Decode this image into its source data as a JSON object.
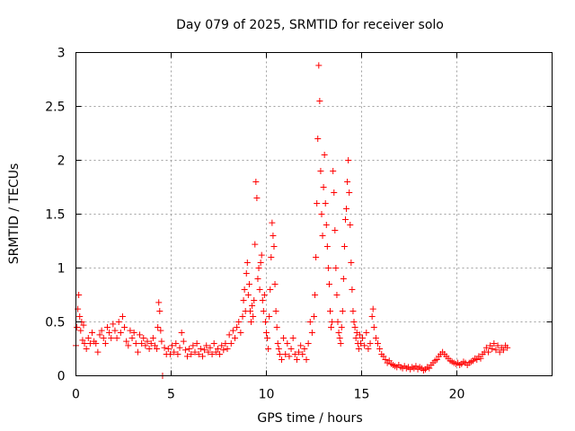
{
  "chart_data": {
    "type": "scatter",
    "title": "Day 079 of 2025, SRMTID for receiver solo",
    "xlabel": "GPS time / hours",
    "ylabel": "SRMTID / TECUs",
    "xlim": [
      0,
      25
    ],
    "ylim": [
      0,
      3
    ],
    "xticks": [
      0,
      5,
      10,
      15,
      20
    ],
    "yticks": [
      0,
      0.5,
      1,
      1.5,
      2,
      2.5,
      3
    ],
    "xtick_labels": [
      "0",
      "5",
      "10",
      "15",
      "20"
    ],
    "ytick_labels": [
      "0",
      "0.5",
      "1",
      "1.5",
      "2",
      "2.5",
      "3"
    ],
    "grid": true,
    "marker": "plus",
    "color": "#ff0000",
    "series": [
      {
        "name": "SRMTID",
        "points": [
          [
            0.0,
            0.28
          ],
          [
            0.05,
            0.45
          ],
          [
            0.1,
            0.62
          ],
          [
            0.15,
            0.75
          ],
          [
            0.2,
            0.55
          ],
          [
            0.25,
            0.42
          ],
          [
            0.3,
            0.5
          ],
          [
            0.35,
            0.33
          ],
          [
            0.4,
            0.47
          ],
          [
            0.45,
            0.3
          ],
          [
            0.55,
            0.25
          ],
          [
            0.65,
            0.35
          ],
          [
            0.75,
            0.3
          ],
          [
            0.85,
            0.4
          ],
          [
            0.95,
            0.32
          ],
          [
            1.05,
            0.3
          ],
          [
            1.15,
            0.22
          ],
          [
            1.25,
            0.38
          ],
          [
            1.35,
            0.42
          ],
          [
            1.45,
            0.35
          ],
          [
            1.55,
            0.3
          ],
          [
            1.65,
            0.45
          ],
          [
            1.75,
            0.4
          ],
          [
            1.85,
            0.35
          ],
          [
            1.95,
            0.48
          ],
          [
            2.05,
            0.42
          ],
          [
            2.15,
            0.35
          ],
          [
            2.25,
            0.5
          ],
          [
            2.35,
            0.4
          ],
          [
            2.45,
            0.55
          ],
          [
            2.55,
            0.45
          ],
          [
            2.65,
            0.32
          ],
          [
            2.75,
            0.28
          ],
          [
            2.85,
            0.42
          ],
          [
            2.95,
            0.35
          ],
          [
            3.05,
            0.4
          ],
          [
            3.15,
            0.3
          ],
          [
            3.25,
            0.22
          ],
          [
            3.35,
            0.38
          ],
          [
            3.45,
            0.3
          ],
          [
            3.55,
            0.35
          ],
          [
            3.65,
            0.28
          ],
          [
            3.75,
            0.32
          ],
          [
            3.85,
            0.25
          ],
          [
            3.95,
            0.3
          ],
          [
            4.05,
            0.35
          ],
          [
            4.15,
            0.28
          ],
          [
            4.25,
            0.25
          ],
          [
            4.3,
            0.45
          ],
          [
            4.35,
            0.68
          ],
          [
            4.4,
            0.6
          ],
          [
            4.45,
            0.42
          ],
          [
            4.5,
            0.32
          ],
          [
            4.55,
            0.0
          ],
          [
            4.65,
            0.26
          ],
          [
            4.75,
            0.2
          ],
          [
            4.85,
            0.25
          ],
          [
            4.95,
            0.2
          ],
          [
            5.05,
            0.28
          ],
          [
            5.15,
            0.22
          ],
          [
            5.25,
            0.3
          ],
          [
            5.35,
            0.2
          ],
          [
            5.45,
            0.26
          ],
          [
            5.55,
            0.4
          ],
          [
            5.65,
            0.32
          ],
          [
            5.75,
            0.24
          ],
          [
            5.85,
            0.18
          ],
          [
            5.95,
            0.25
          ],
          [
            6.05,
            0.2
          ],
          [
            6.15,
            0.28
          ],
          [
            6.25,
            0.22
          ],
          [
            6.35,
            0.3
          ],
          [
            6.45,
            0.2
          ],
          [
            6.55,
            0.25
          ],
          [
            6.65,
            0.18
          ],
          [
            6.75,
            0.24
          ],
          [
            6.85,
            0.28
          ],
          [
            6.95,
            0.22
          ],
          [
            7.05,
            0.26
          ],
          [
            7.15,
            0.2
          ],
          [
            7.25,
            0.3
          ],
          [
            7.35,
            0.22
          ],
          [
            7.45,
            0.25
          ],
          [
            7.55,
            0.2
          ],
          [
            7.65,
            0.28
          ],
          [
            7.75,
            0.24
          ],
          [
            7.85,
            0.3
          ],
          [
            7.95,
            0.25
          ],
          [
            8.05,
            0.38
          ],
          [
            8.15,
            0.3
          ],
          [
            8.25,
            0.42
          ],
          [
            8.35,
            0.35
          ],
          [
            8.45,
            0.45
          ],
          [
            8.55,
            0.5
          ],
          [
            8.65,
            0.4
          ],
          [
            8.75,
            0.55
          ],
          [
            8.8,
            0.7
          ],
          [
            8.85,
            0.8
          ],
          [
            8.9,
            0.6
          ],
          [
            8.95,
            0.95
          ],
          [
            9.0,
            1.05
          ],
          [
            9.05,
            0.75
          ],
          [
            9.1,
            0.85
          ],
          [
            9.15,
            0.6
          ],
          [
            9.2,
            0.5
          ],
          [
            9.25,
            0.65
          ],
          [
            9.3,
            0.55
          ],
          [
            9.35,
            0.7
          ],
          [
            9.4,
            1.22
          ],
          [
            9.45,
            1.8
          ],
          [
            9.5,
            1.65
          ],
          [
            9.55,
            0.9
          ],
          [
            9.6,
            1.0
          ],
          [
            9.65,
            0.8
          ],
          [
            9.7,
            1.05
          ],
          [
            9.75,
            1.12
          ],
          [
            9.8,
            0.7
          ],
          [
            9.85,
            0.6
          ],
          [
            9.9,
            0.75
          ],
          [
            9.95,
            0.5
          ],
          [
            10.0,
            0.4
          ],
          [
            10.05,
            0.35
          ],
          [
            10.1,
            0.25
          ],
          [
            10.15,
            0.55
          ],
          [
            10.2,
            0.8
          ],
          [
            10.25,
            1.1
          ],
          [
            10.3,
            1.42
          ],
          [
            10.35,
            1.3
          ],
          [
            10.4,
            1.2
          ],
          [
            10.45,
            0.85
          ],
          [
            10.5,
            0.6
          ],
          [
            10.55,
            0.45
          ],
          [
            10.6,
            0.3
          ],
          [
            10.65,
            0.25
          ],
          [
            10.7,
            0.2
          ],
          [
            10.8,
            0.15
          ],
          [
            10.9,
            0.35
          ],
          [
            11.0,
            0.2
          ],
          [
            11.1,
            0.3
          ],
          [
            11.2,
            0.18
          ],
          [
            11.3,
            0.25
          ],
          [
            11.4,
            0.35
          ],
          [
            11.5,
            0.2
          ],
          [
            11.6,
            0.15
          ],
          [
            11.7,
            0.22
          ],
          [
            11.8,
            0.28
          ],
          [
            11.9,
            0.2
          ],
          [
            12.0,
            0.25
          ],
          [
            12.1,
            0.15
          ],
          [
            12.2,
            0.3
          ],
          [
            12.3,
            0.5
          ],
          [
            12.4,
            0.4
          ],
          [
            12.5,
            0.55
          ],
          [
            12.55,
            0.75
          ],
          [
            12.6,
            1.1
          ],
          [
            12.65,
            1.6
          ],
          [
            12.7,
            2.2
          ],
          [
            12.75,
            2.88
          ],
          [
            12.8,
            2.55
          ],
          [
            12.85,
            1.9
          ],
          [
            12.9,
            1.5
          ],
          [
            12.95,
            1.3
          ],
          [
            13.0,
            1.75
          ],
          [
            13.05,
            2.05
          ],
          [
            13.1,
            1.6
          ],
          [
            13.15,
            1.4
          ],
          [
            13.2,
            1.2
          ],
          [
            13.25,
            1.0
          ],
          [
            13.3,
            0.85
          ],
          [
            13.35,
            0.6
          ],
          [
            13.4,
            0.45
          ],
          [
            13.45,
            0.5
          ],
          [
            13.5,
            1.9
          ],
          [
            13.55,
            1.7
          ],
          [
            13.6,
            1.35
          ],
          [
            13.65,
            1.0
          ],
          [
            13.7,
            0.75
          ],
          [
            13.75,
            0.5
          ],
          [
            13.8,
            0.4
          ],
          [
            13.85,
            0.35
          ],
          [
            13.9,
            0.3
          ],
          [
            13.95,
            0.45
          ],
          [
            14.0,
            0.6
          ],
          [
            14.05,
            0.9
          ],
          [
            14.1,
            1.2
          ],
          [
            14.15,
            1.45
          ],
          [
            14.2,
            1.55
          ],
          [
            14.25,
            1.8
          ],
          [
            14.3,
            2.0
          ],
          [
            14.35,
            1.7
          ],
          [
            14.4,
            1.4
          ],
          [
            14.45,
            1.05
          ],
          [
            14.5,
            0.8
          ],
          [
            14.55,
            0.6
          ],
          [
            14.6,
            0.5
          ],
          [
            14.65,
            0.45
          ],
          [
            14.7,
            0.35
          ],
          [
            14.75,
            0.4
          ],
          [
            14.8,
            0.3
          ],
          [
            14.85,
            0.25
          ],
          [
            14.9,
            0.38
          ],
          [
            14.95,
            0.3
          ],
          [
            15.05,
            0.35
          ],
          [
            15.15,
            0.28
          ],
          [
            15.25,
            0.4
          ],
          [
            15.35,
            0.25
          ],
          [
            15.45,
            0.3
          ],
          [
            15.55,
            0.55
          ],
          [
            15.6,
            0.62
          ],
          [
            15.65,
            0.45
          ],
          [
            15.75,
            0.35
          ],
          [
            15.85,
            0.3
          ],
          [
            15.95,
            0.25
          ],
          [
            16.05,
            0.2
          ],
          [
            16.15,
            0.18
          ],
          [
            16.25,
            0.15
          ],
          [
            16.35,
            0.12
          ],
          [
            16.45,
            0.14
          ],
          [
            16.55,
            0.11
          ],
          [
            16.65,
            0.1
          ],
          [
            16.75,
            0.09
          ],
          [
            16.85,
            0.08
          ],
          [
            16.95,
            0.1
          ],
          [
            17.05,
            0.08
          ],
          [
            17.15,
            0.07
          ],
          [
            17.25,
            0.09
          ],
          [
            17.35,
            0.07
          ],
          [
            17.45,
            0.08
          ],
          [
            17.55,
            0.06
          ],
          [
            17.65,
            0.08
          ],
          [
            17.75,
            0.07
          ],
          [
            17.85,
            0.09
          ],
          [
            17.95,
            0.06
          ],
          [
            18.05,
            0.08
          ],
          [
            18.15,
            0.07
          ],
          [
            18.25,
            0.05
          ],
          [
            18.35,
            0.06
          ],
          [
            18.45,
            0.08
          ],
          [
            18.55,
            0.07
          ],
          [
            18.65,
            0.1
          ],
          [
            18.75,
            0.12
          ],
          [
            18.85,
            0.14
          ],
          [
            18.95,
            0.15
          ],
          [
            19.05,
            0.18
          ],
          [
            19.15,
            0.2
          ],
          [
            19.25,
            0.22
          ],
          [
            19.35,
            0.2
          ],
          [
            19.45,
            0.18
          ],
          [
            19.55,
            0.16
          ],
          [
            19.65,
            0.14
          ],
          [
            19.75,
            0.13
          ],
          [
            19.85,
            0.12
          ],
          [
            19.95,
            0.11
          ],
          [
            20.05,
            0.12
          ],
          [
            20.15,
            0.1
          ],
          [
            20.25,
            0.11
          ],
          [
            20.35,
            0.13
          ],
          [
            20.45,
            0.12
          ],
          [
            20.55,
            0.1
          ],
          [
            20.65,
            0.12
          ],
          [
            20.75,
            0.13
          ],
          [
            20.85,
            0.14
          ],
          [
            20.95,
            0.16
          ],
          [
            21.05,
            0.15
          ],
          [
            21.15,
            0.18
          ],
          [
            21.25,
            0.16
          ],
          [
            21.35,
            0.2
          ],
          [
            21.45,
            0.22
          ],
          [
            21.55,
            0.26
          ],
          [
            21.65,
            0.22
          ],
          [
            21.75,
            0.28
          ],
          [
            21.85,
            0.25
          ],
          [
            21.95,
            0.3
          ],
          [
            22.05,
            0.24
          ],
          [
            22.15,
            0.28
          ],
          [
            22.25,
            0.22
          ],
          [
            22.35,
            0.26
          ],
          [
            22.45,
            0.24
          ],
          [
            22.55,
            0.28
          ],
          [
            22.65,
            0.26
          ]
        ]
      }
    ]
  }
}
